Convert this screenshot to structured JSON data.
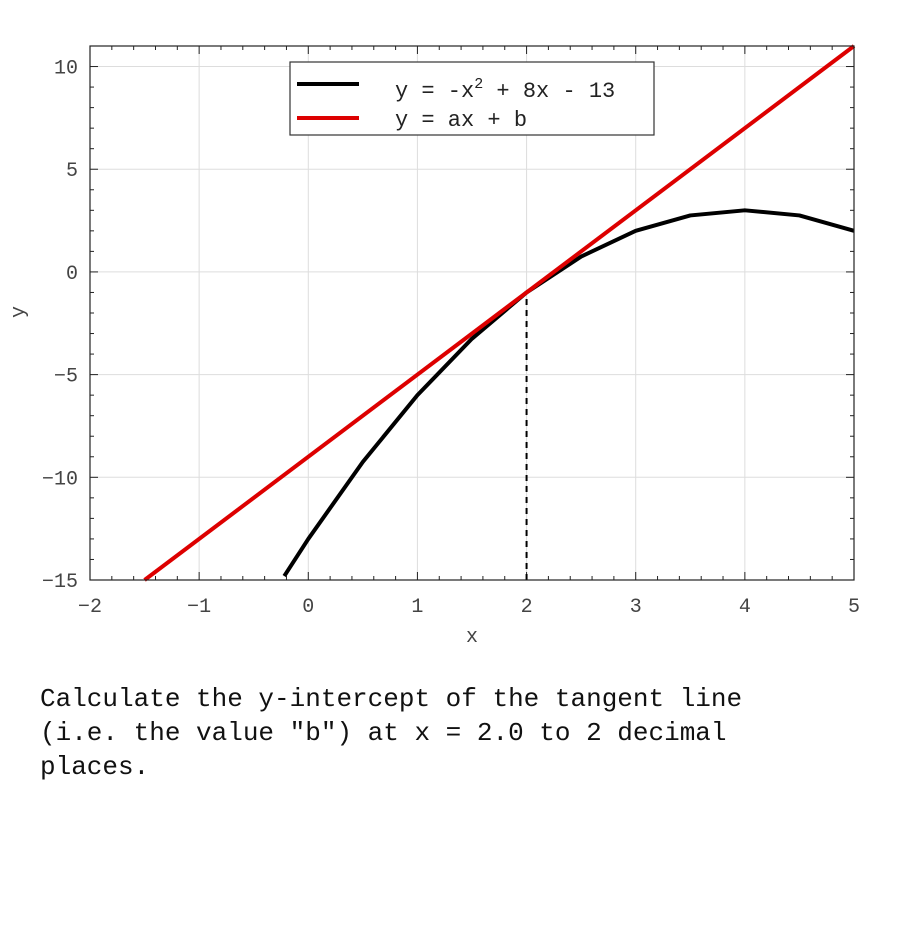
{
  "chart_data": {
    "type": "line",
    "xlabel": "x",
    "ylabel": "y",
    "xlim": [
      -2,
      5
    ],
    "ylim": [
      -15,
      11
    ],
    "xticks": [
      -2,
      -1,
      0,
      1,
      2,
      3,
      4,
      5
    ],
    "yticks": [
      -15,
      -10,
      -5,
      0,
      5,
      10
    ],
    "xtick_labels": [
      "−2",
      "−1",
      "0",
      "1",
      "2",
      "3",
      "4",
      "5"
    ],
    "ytick_labels": [
      "−15",
      "−10",
      "−5",
      "0",
      "5",
      "10"
    ],
    "grid": true,
    "legend_position": "top-center",
    "series": [
      {
        "name": "y = -x² + 8x - 13",
        "legend_prefix": "y = -x",
        "legend_superscript": "2",
        "legend_suffix": " + 8x - 13",
        "color": "#000000",
        "x": [
          -0.22,
          0.0,
          0.5,
          1.0,
          1.5,
          2.0,
          2.5,
          3.0,
          3.5,
          4.0,
          4.5,
          5.0
        ],
        "y": [
          -14.81,
          -13.0,
          -9.25,
          -6.0,
          -3.25,
          -1.0,
          0.75,
          2.0,
          2.75,
          3.0,
          2.75,
          2.0
        ]
      },
      {
        "name": "y = ax + b",
        "color": "#dd0000",
        "x": [
          -1.5,
          5.0
        ],
        "y": [
          -15.0,
          11.0
        ]
      }
    ],
    "tangent_marker": {
      "x": 2.0,
      "y_from": -15,
      "y_to": -1.0
    }
  },
  "question": "Calculate the y-intercept of the tangent line\n(i.e. the value \"b\") at x = 2.0 to 2 decimal\nplaces."
}
